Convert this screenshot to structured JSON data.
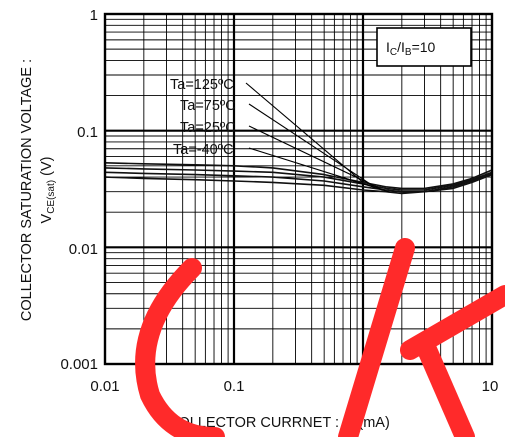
{
  "chart_data": {
    "type": "line",
    "x_scale": "log",
    "y_scale": "log",
    "xlim": [
      0.01,
      10
    ],
    "ylim": [
      0.001,
      1
    ],
    "grid": true,
    "x_ticks": [
      "0.01",
      "0.1",
      "1",
      "10"
    ],
    "y_ticks": [
      "1",
      "0.1",
      "0.01",
      "0.001"
    ],
    "xlabel": {
      "main": "COLLECTOR CURRNET : I",
      "sub": "C",
      "unit": " (mA)"
    },
    "ylabel": {
      "line1": "COLLECTOR SATURATION VOLTAGE :",
      "line2_main": "V",
      "line2_sub": "CE(sat)",
      "line2_unit": " (V)"
    },
    "condition": {
      "i1": "I",
      "s1": "C",
      "slash": "/I",
      "s2": "B",
      "value": "=10"
    },
    "series": [
      {
        "name": "Ta=125ºC",
        "x": [
          0.01,
          0.02,
          0.05,
          0.1,
          0.2,
          0.5,
          1,
          1.5,
          2,
          3,
          5,
          7,
          10
        ],
        "y": [
          0.053,
          0.052,
          0.051,
          0.05,
          0.048,
          0.042,
          0.036,
          0.033,
          0.032,
          0.032,
          0.035,
          0.039,
          0.046
        ]
      },
      {
        "name": "Ta=75ºC",
        "x": [
          0.01,
          0.02,
          0.05,
          0.1,
          0.2,
          0.5,
          1,
          1.5,
          2,
          3,
          5,
          7,
          10
        ],
        "y": [
          0.048,
          0.047,
          0.046,
          0.045,
          0.044,
          0.04,
          0.035,
          0.032,
          0.031,
          0.031,
          0.034,
          0.038,
          0.044
        ]
      },
      {
        "name": "Ta=25ºC",
        "x": [
          0.01,
          0.02,
          0.05,
          0.1,
          0.2,
          0.5,
          1,
          1.5,
          2,
          3,
          5,
          7,
          10
        ],
        "y": [
          0.044,
          0.043,
          0.042,
          0.041,
          0.04,
          0.037,
          0.033,
          0.031,
          0.03,
          0.03,
          0.033,
          0.037,
          0.043
        ]
      },
      {
        "name": "Ta=-40ºC",
        "x": [
          0.01,
          0.02,
          0.05,
          0.1,
          0.2,
          0.5,
          1,
          1.5,
          2,
          3,
          5,
          7,
          10
        ],
        "y": [
          0.04,
          0.039,
          0.038,
          0.037,
          0.036,
          0.034,
          0.031,
          0.03,
          0.029,
          0.03,
          0.032,
          0.036,
          0.042
        ]
      }
    ],
    "line_color": "#111111",
    "watermark_color": "#ff2a2a"
  }
}
